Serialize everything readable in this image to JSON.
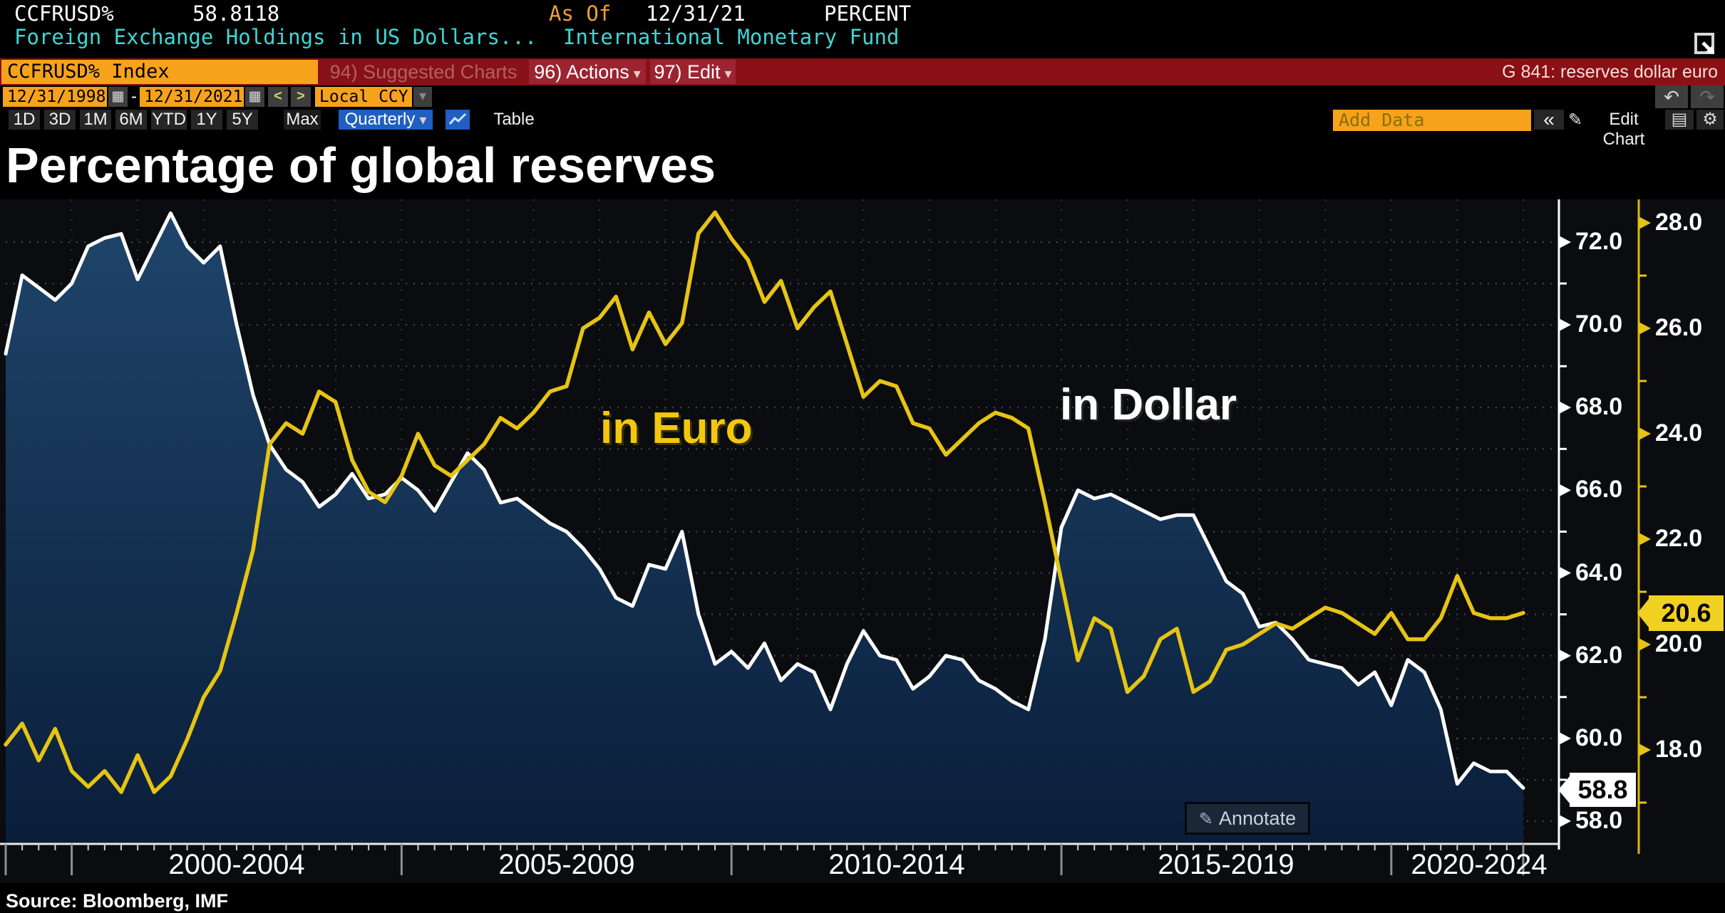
{
  "terminal": {
    "row1": {
      "ticker": "CCFRUSD%",
      "last_value": "58.8118",
      "as_of_label": "As Of",
      "as_of_date": "12/31/21",
      "unit": "PERCENT"
    },
    "row2": {
      "description": "Foreign Exchange Holdings in US Dollars...",
      "provider": "International Monetary Fund"
    },
    "ribbon": {
      "ticker_box": "CCFRUSD% Index",
      "suggested_charts": "94) Suggested Charts",
      "actions": "96) Actions",
      "edit": "97) Edit",
      "chart_tag": "G 841: reserves dollar euro"
    },
    "date_row": {
      "start_date": "12/31/1998",
      "separator": "-",
      "end_date": "12/31/2021",
      "prev_arrow": "<",
      "next_arrow": ">",
      "currency": "Local CCY"
    },
    "toolbar": {
      "ranges": [
        "1D",
        "3D",
        "1M",
        "6M",
        "YTD",
        "1Y",
        "5Y",
        "Max"
      ],
      "period": "Quarterly",
      "table_label": "Table",
      "add_data_placeholder": "Add Data",
      "collapse_label": "«",
      "edit_chart_label": "Edit Chart"
    }
  },
  "chart": {
    "title": "Percentage of global reserves",
    "euro_annotation": "in Euro",
    "dollar_annotation": "in Dollar",
    "annotate_label": "Annotate",
    "source_line": "Source: Bloomberg, IMF",
    "usd_axis_ticks": [
      "72.0",
      "70.0",
      "68.0",
      "66.0",
      "64.0",
      "62.0",
      "60.0",
      "58.0"
    ],
    "eur_axis_ticks": [
      "28.0",
      "26.0",
      "24.0",
      "22.0",
      "20.0",
      "18.0"
    ],
    "usd_badge": "58.8",
    "eur_badge": "20.6",
    "x_labels": [
      "2000-2004",
      "2005-2009",
      "2010-2014",
      "2015-2019",
      "2020-2024"
    ],
    "colors": {
      "usd_line": "#ffffff",
      "eur_line": "#e6c413",
      "fill_top": "#1f456b",
      "fill_bottom": "#0a1e3a",
      "eur_badge_bg": "#f0d020",
      "usd_badge_bg": "#ffffff",
      "grid": "#9aa8ba",
      "accent_orange": "#f7a21b",
      "accent_blue": "#1e5fc1",
      "ribbon_red": "#8a1016"
    }
  },
  "chart_data": {
    "type": "line",
    "title": "Percentage of global reserves",
    "x_unit": "quarterly",
    "x_start": "12/31/1998",
    "x_end": "12/31/2021",
    "x_group_labels": [
      "2000-2004",
      "2005-2009",
      "2010-2014",
      "2015-2019",
      "2020-2024"
    ],
    "grid": true,
    "legend_position": "inline-annotations",
    "series": [
      {
        "name": "Reserves in Dollar (% of global reserves)",
        "axis": "inner-white",
        "ylim": [
          58.0,
          72.0
        ],
        "last_value": 58.8,
        "values": [
          69.3,
          71.2,
          70.9,
          70.6,
          71.0,
          71.9,
          72.1,
          72.2,
          71.1,
          71.9,
          72.7,
          71.9,
          71.5,
          71.9,
          70.0,
          68.3,
          67.1,
          66.5,
          66.2,
          65.6,
          65.9,
          66.4,
          65.8,
          65.9,
          66.3,
          66.0,
          65.5,
          66.2,
          66.9,
          66.5,
          65.7,
          65.8,
          65.5,
          65.2,
          65.0,
          64.6,
          64.1,
          63.4,
          63.2,
          64.2,
          64.1,
          65.0,
          63.0,
          61.8,
          62.1,
          61.7,
          62.3,
          61.4,
          61.8,
          61.6,
          60.7,
          61.8,
          62.6,
          62.0,
          61.9,
          61.2,
          61.5,
          62.0,
          61.9,
          61.4,
          61.2,
          60.9,
          60.7,
          62.4,
          65.1,
          66.0,
          65.8,
          65.9,
          65.7,
          65.5,
          65.3,
          65.4,
          65.4,
          64.6,
          63.8,
          63.5,
          62.7,
          62.8,
          62.4,
          61.9,
          61.8,
          61.7,
          61.3,
          61.6,
          60.8,
          61.9,
          61.6,
          60.7,
          58.9,
          59.4,
          59.2,
          59.2,
          58.8
        ]
      },
      {
        "name": "Reserves in Euro (% of global reserves)",
        "axis": "outer-yellow",
        "ylim": [
          18.0,
          28.0
        ],
        "last_value": 20.6,
        "values": [
          18.1,
          18.5,
          17.8,
          18.4,
          17.6,
          17.3,
          17.6,
          17.2,
          17.9,
          17.2,
          17.5,
          18.2,
          19.0,
          19.5,
          20.6,
          21.8,
          23.8,
          24.2,
          24.0,
          24.8,
          24.6,
          23.5,
          22.9,
          22.7,
          23.2,
          24.0,
          23.4,
          23.2,
          23.5,
          23.8,
          24.3,
          24.1,
          24.4,
          24.8,
          24.9,
          26.0,
          26.2,
          26.6,
          25.6,
          26.3,
          25.7,
          26.1,
          27.8,
          28.2,
          27.7,
          27.3,
          26.5,
          26.9,
          26.0,
          26.4,
          26.7,
          25.7,
          24.7,
          25.0,
          24.9,
          24.2,
          24.1,
          23.6,
          23.9,
          24.2,
          24.4,
          24.3,
          24.1,
          22.7,
          21.2,
          19.7,
          20.5,
          20.3,
          19.1,
          19.4,
          20.1,
          20.3,
          19.1,
          19.3,
          19.9,
          20.0,
          20.2,
          20.4,
          20.3,
          20.5,
          20.7,
          20.6,
          20.4,
          20.2,
          20.6,
          20.1,
          20.1,
          20.5,
          21.3,
          20.6,
          20.5,
          20.5,
          20.6
        ]
      }
    ]
  }
}
